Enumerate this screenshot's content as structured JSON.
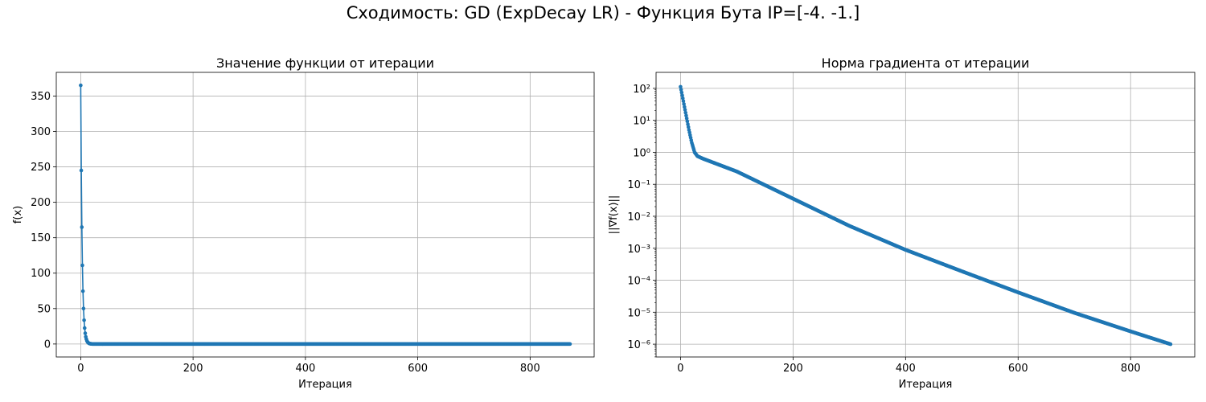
{
  "figure": {
    "suptitle": "Сходимость: GD (ExpDecay LR) - Функция Бута IP=[-4. -1.]"
  },
  "colors": {
    "series": "#1f77b4",
    "grid": "#b0b0b0",
    "axis": "#000000"
  },
  "chart_data": [
    {
      "type": "line",
      "title": "Значение функции от итерации",
      "xlabel": "Итерация",
      "ylabel": "f(x)",
      "yscale": "linear",
      "xlim": [
        -43.5,
        914
      ],
      "ylim": [
        -18.3,
        383.4
      ],
      "xticks": [
        0,
        200,
        400,
        600,
        800
      ],
      "yticks": [
        0,
        50,
        100,
        150,
        200,
        250,
        300,
        350
      ],
      "grid": true,
      "marker": "circle",
      "x_last": 871,
      "early_points": [
        [
          0,
          365.1
        ],
        [
          1,
          245.0
        ],
        [
          2,
          165.0
        ],
        [
          3,
          111.0
        ],
        [
          4,
          74.6
        ],
        [
          5,
          50.1
        ],
        [
          6,
          33.6
        ],
        [
          7,
          22.6
        ],
        [
          8,
          15.2
        ],
        [
          9,
          10.2
        ],
        [
          10,
          6.9
        ],
        [
          11,
          4.6
        ],
        [
          12,
          3.1
        ],
        [
          13,
          2.1
        ],
        [
          14,
          1.4
        ],
        [
          15,
          0.9
        ],
        [
          16,
          0.6
        ],
        [
          17,
          0.4
        ],
        [
          18,
          0.3
        ],
        [
          19,
          0.2
        ],
        [
          20,
          0.1
        ]
      ],
      "tail_value": 0
    },
    {
      "type": "line",
      "title": "Норма градиента от итерации",
      "xlabel": "Итерация",
      "ylabel": "||∇f(x)||",
      "yscale": "log",
      "xlim": [
        -43.5,
        914
      ],
      "ylim_log10": [
        -6.4,
        2.5
      ],
      "xticks": [
        0,
        200,
        400,
        600,
        800
      ],
      "yticks_exp": [
        2,
        1,
        0,
        -1,
        -2,
        -3,
        -4,
        -5,
        -6
      ],
      "ytick_labels": [
        "10²",
        "10¹",
        "10⁰",
        "10⁻¹",
        "10⁻²",
        "10⁻³",
        "10⁻⁴",
        "10⁻⁵",
        "10⁻⁶"
      ],
      "grid": true,
      "marker": "circle",
      "x_last": 871,
      "log10_anchors": [
        [
          0,
          2.05
        ],
        [
          5,
          1.6
        ],
        [
          10,
          1.15
        ],
        [
          15,
          0.7
        ],
        [
          20,
          0.3
        ],
        [
          25,
          0.0
        ],
        [
          30,
          -0.12
        ],
        [
          40,
          -0.2
        ],
        [
          100,
          -0.6
        ],
        [
          200,
          -1.45
        ],
        [
          300,
          -2.3
        ],
        [
          400,
          -3.05
        ],
        [
          500,
          -3.72
        ],
        [
          600,
          -4.38
        ],
        [
          700,
          -5.02
        ],
        [
          800,
          -5.6
        ],
        [
          871,
          -6.0
        ]
      ]
    }
  ]
}
